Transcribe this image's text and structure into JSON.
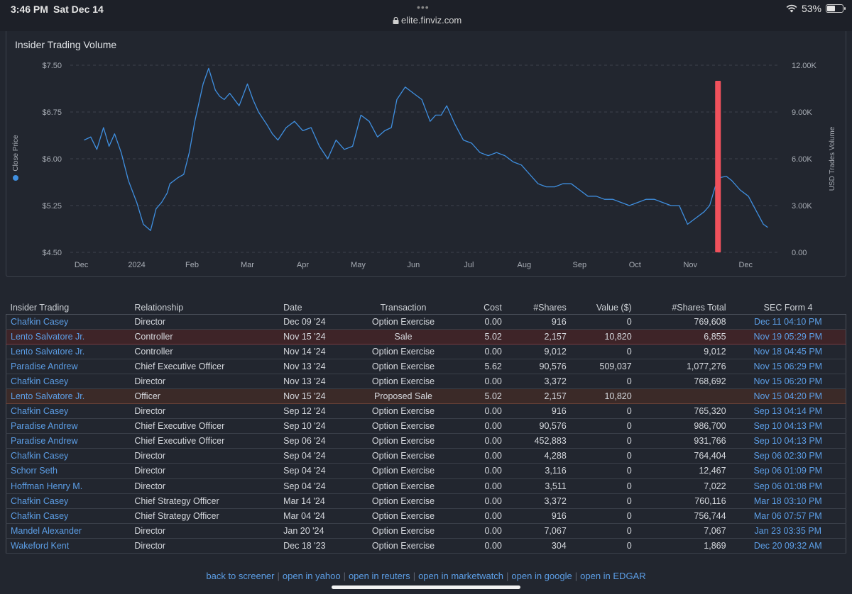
{
  "status_bar": {
    "time": "3:46 PM",
    "date": "Sat Dec 14",
    "url": "elite.finviz.com",
    "battery": "53%"
  },
  "chart": {
    "title": "Insider Trading Volume",
    "y_left_label": "Close Price",
    "y_right_label": "USD Trades Volume",
    "y_left_ticks": [
      "$7.50",
      "$6.75",
      "$6.00",
      "$5.25",
      "$4.50"
    ],
    "y_right_ticks": [
      "12.00K",
      "9.00K",
      "6.00K",
      "3.00K",
      "0.00"
    ],
    "x_ticks": [
      "Dec",
      "2024",
      "Feb",
      "Mar",
      "Apr",
      "May",
      "Jun",
      "Jul",
      "Aug",
      "Sep",
      "Oct",
      "Nov",
      "Dec"
    ],
    "line_color": "#3f8fe0",
    "bar_color": "#f0515c"
  },
  "chart_data": {
    "type": "line",
    "title": "Insider Trading Volume",
    "ylabel": "Close Price",
    "y2label": "USD Trades Volume",
    "ylim": [
      4.5,
      7.5
    ],
    "y2lim": [
      0,
      12000
    ],
    "xlim": [
      -0.7,
      12.1
    ],
    "series": [
      {
        "name": "Close Price",
        "x": [
          -0.45,
          -0.33,
          -0.22,
          -0.1,
          0.0,
          0.1,
          0.22,
          0.35,
          0.5,
          0.62,
          0.75,
          0.85,
          0.95,
          1.05,
          1.1,
          1.25,
          1.35,
          1.45,
          1.55,
          1.7,
          1.8,
          1.92,
          2.0,
          2.08,
          2.18,
          2.35,
          2.5,
          2.6,
          2.7,
          2.85,
          2.95,
          3.05,
          3.2,
          3.35,
          3.5,
          3.65,
          3.8,
          3.95,
          4.1,
          4.25,
          4.4,
          4.55,
          4.7,
          4.85,
          4.98,
          5.1,
          5.2,
          5.35,
          5.5,
          5.65,
          5.8,
          5.9,
          6.0,
          6.1,
          6.25,
          6.4,
          6.55,
          6.7,
          6.85,
          7.0,
          7.15,
          7.3,
          7.45,
          7.6,
          7.75,
          7.9,
          8.05,
          8.2,
          8.35,
          8.5,
          8.65,
          8.8,
          8.95,
          9.1,
          9.25,
          9.4,
          9.55,
          9.7,
          9.85,
          10.0,
          10.15,
          10.3,
          10.45,
          10.6,
          10.75,
          10.85,
          10.95,
          11.05,
          11.15,
          11.25,
          11.4,
          11.55,
          11.7,
          11.82,
          11.9
        ],
        "values": [
          6.3,
          6.35,
          6.15,
          6.5,
          6.2,
          6.4,
          6.1,
          5.65,
          5.3,
          4.95,
          4.85,
          5.2,
          5.3,
          5.45,
          5.6,
          5.7,
          5.75,
          6.1,
          6.6,
          7.2,
          7.45,
          7.1,
          7.0,
          6.95,
          7.05,
          6.85,
          7.2,
          6.95,
          6.75,
          6.55,
          6.4,
          6.3,
          6.5,
          6.6,
          6.45,
          6.5,
          6.2,
          6.0,
          6.3,
          6.15,
          6.2,
          6.7,
          6.6,
          6.35,
          6.45,
          6.5,
          6.95,
          7.15,
          7.05,
          6.95,
          6.6,
          6.7,
          6.7,
          6.85,
          6.55,
          6.3,
          6.25,
          6.1,
          6.05,
          6.1,
          6.05,
          5.95,
          5.9,
          5.75,
          5.6,
          5.55,
          5.55,
          5.6,
          5.6,
          5.5,
          5.4,
          5.4,
          5.35,
          5.35,
          5.3,
          5.25,
          5.3,
          5.35,
          5.35,
          5.3,
          5.25,
          5.25,
          4.95,
          5.05,
          5.15,
          5.25,
          5.55,
          5.7,
          5.72,
          5.65,
          5.5,
          5.4,
          5.15,
          4.95,
          4.9
        ]
      },
      {
        "name": "USD Trades Volume",
        "type": "bar",
        "x": [
          11.0
        ],
        "values": [
          11000
        ]
      }
    ]
  },
  "table": {
    "columns": [
      "Insider Trading",
      "Relationship",
      "Date",
      "Transaction",
      "Cost",
      "#Shares",
      "Value ($)",
      "#Shares Total",
      "SEC Form 4"
    ],
    "rows": [
      {
        "name": "Chafkin Casey",
        "relationship": "Director",
        "date": "Dec 09 '24",
        "transaction": "Option Exercise",
        "cost": "0.00",
        "shares": "916",
        "value": "0",
        "total": "769,608",
        "sec": "Dec 11 04:10 PM"
      },
      {
        "name": "Lento Salvatore Jr.",
        "relationship": "Controller",
        "date": "Nov 15 '24",
        "transaction": "Sale",
        "cost": "5.02",
        "shares": "2,157",
        "value": "10,820",
        "total": "6,855",
        "sec": "Nov 19 05:29 PM"
      },
      {
        "name": "Lento Salvatore Jr.",
        "relationship": "Controller",
        "date": "Nov 14 '24",
        "transaction": "Option Exercise",
        "cost": "0.00",
        "shares": "9,012",
        "value": "0",
        "total": "9,012",
        "sec": "Nov 18 04:45 PM"
      },
      {
        "name": "Paradise Andrew",
        "relationship": "Chief Executive Officer",
        "date": "Nov 13 '24",
        "transaction": "Option Exercise",
        "cost": "5.62",
        "shares": "90,576",
        "value": "509,037",
        "total": "1,077,276",
        "sec": "Nov 15 06:29 PM"
      },
      {
        "name": "Chafkin Casey",
        "relationship": "Director",
        "date": "Nov 13 '24",
        "transaction": "Option Exercise",
        "cost": "0.00",
        "shares": "3,372",
        "value": "0",
        "total": "768,692",
        "sec": "Nov 15 06:20 PM"
      },
      {
        "name": "Lento Salvatore Jr.",
        "relationship": "Officer",
        "date": "Nov 15 '24",
        "transaction": "Proposed Sale",
        "cost": "5.02",
        "shares": "2,157",
        "value": "10,820",
        "total": "",
        "sec": "Nov 15 04:20 PM"
      },
      {
        "name": "Chafkin Casey",
        "relationship": "Director",
        "date": "Sep 12 '24",
        "transaction": "Option Exercise",
        "cost": "0.00",
        "shares": "916",
        "value": "0",
        "total": "765,320",
        "sec": "Sep 13 04:14 PM"
      },
      {
        "name": "Paradise Andrew",
        "relationship": "Chief Executive Officer",
        "date": "Sep 10 '24",
        "transaction": "Option Exercise",
        "cost": "0.00",
        "shares": "90,576",
        "value": "0",
        "total": "986,700",
        "sec": "Sep 10 04:13 PM"
      },
      {
        "name": "Paradise Andrew",
        "relationship": "Chief Executive Officer",
        "date": "Sep 06 '24",
        "transaction": "Option Exercise",
        "cost": "0.00",
        "shares": "452,883",
        "value": "0",
        "total": "931,766",
        "sec": "Sep 10 04:13 PM"
      },
      {
        "name": "Chafkin Casey",
        "relationship": "Director",
        "date": "Sep 04 '24",
        "transaction": "Option Exercise",
        "cost": "0.00",
        "shares": "4,288",
        "value": "0",
        "total": "764,404",
        "sec": "Sep 06 02:30 PM"
      },
      {
        "name": "Schorr Seth",
        "relationship": "Director",
        "date": "Sep 04 '24",
        "transaction": "Option Exercise",
        "cost": "0.00",
        "shares": "3,116",
        "value": "0",
        "total": "12,467",
        "sec": "Sep 06 01:09 PM"
      },
      {
        "name": "Hoffman Henry M.",
        "relationship": "Director",
        "date": "Sep 04 '24",
        "transaction": "Option Exercise",
        "cost": "0.00",
        "shares": "3,511",
        "value": "0",
        "total": "7,022",
        "sec": "Sep 06 01:08 PM"
      },
      {
        "name": "Chafkin Casey",
        "relationship": "Chief Strategy Officer",
        "date": "Mar 14 '24",
        "transaction": "Option Exercise",
        "cost": "0.00",
        "shares": "3,372",
        "value": "0",
        "total": "760,116",
        "sec": "Mar 18 03:10 PM"
      },
      {
        "name": "Chafkin Casey",
        "relationship": "Chief Strategy Officer",
        "date": "Mar 04 '24",
        "transaction": "Option Exercise",
        "cost": "0.00",
        "shares": "916",
        "value": "0",
        "total": "756,744",
        "sec": "Mar 06 07:57 PM"
      },
      {
        "name": "Mandel Alexander",
        "relationship": "Director",
        "date": "Jan 20 '24",
        "transaction": "Option Exercise",
        "cost": "0.00",
        "shares": "7,067",
        "value": "0",
        "total": "7,067",
        "sec": "Jan 23 03:35 PM"
      },
      {
        "name": "Wakeford Kent",
        "relationship": "Director",
        "date": "Dec 18 '23",
        "transaction": "Option Exercise",
        "cost": "0.00",
        "shares": "304",
        "value": "0",
        "total": "1,869",
        "sec": "Dec 20 09:32 AM"
      }
    ]
  },
  "footer": {
    "links": [
      "back to screener",
      "open in yahoo",
      "open in reuters",
      "open in marketwatch",
      "open in google",
      "open in EDGAR"
    ]
  }
}
